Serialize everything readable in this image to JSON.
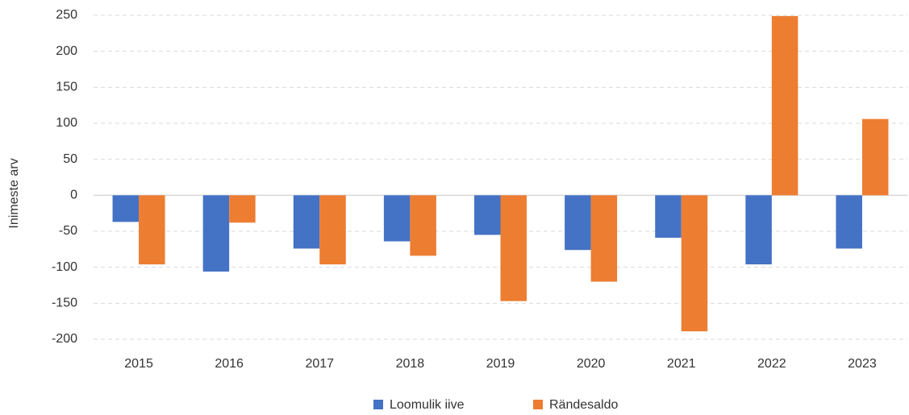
{
  "chart_data": {
    "type": "bar",
    "y_label": "Inimeste arv",
    "categories": [
      "2015",
      "2016",
      "2017",
      "2018",
      "2019",
      "2020",
      "2021",
      "2022",
      "2023"
    ],
    "series": [
      {
        "name": "Loomulik iive",
        "color": "#4472c4",
        "values": [
          -37,
          -106,
          -74,
          -64,
          -55,
          -76,
          -59,
          -96,
          -74
        ]
      },
      {
        "name": "Rändesaldo",
        "color": "#ed7d31",
        "values": [
          -96,
          -38,
          -96,
          -84,
          -147,
          -120,
          -189,
          249,
          106
        ]
      }
    ],
    "ylim": [
      -200,
      250
    ],
    "yticks": [
      -200,
      -150,
      -100,
      -50,
      0,
      50,
      100,
      150,
      200,
      250
    ],
    "grid": true,
    "legend": "bottom"
  }
}
